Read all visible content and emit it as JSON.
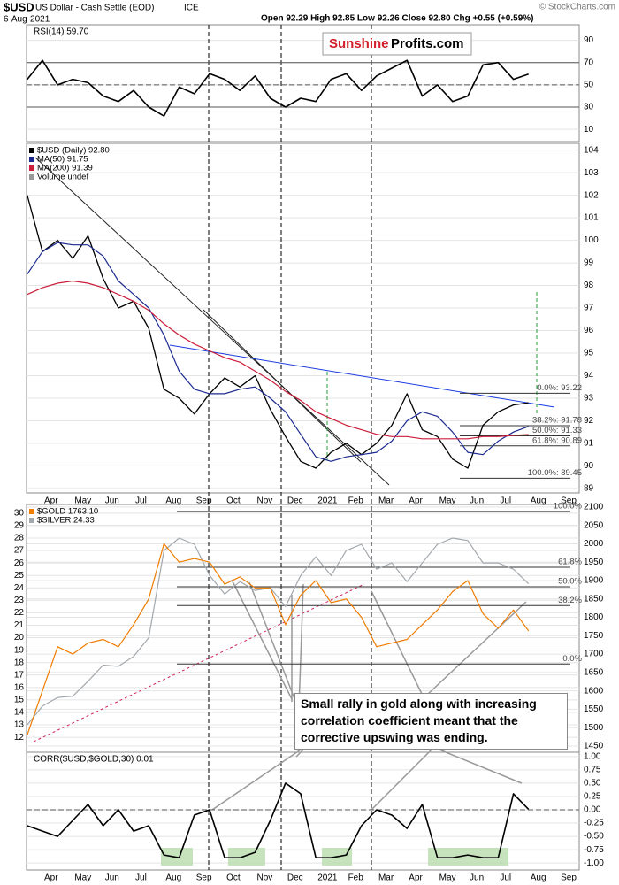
{
  "header": {
    "symbol": "$USD",
    "name": "US Dollar - Cash Settle (EOD)",
    "exchange": "ICE",
    "date": "6-Aug-2021",
    "quote": "Open 92.29  High 92.85  Low 92.26  Close 92.80  Chg +0.55 (+0.59%)",
    "credit": "© StockCharts.com"
  },
  "logo": {
    "left": "Sunshine",
    "right": "Profits.com"
  },
  "annotation": "Small rally in gold along with increasing correlation coefficient meant that the corrective upswing was ending.",
  "chart_data": [
    {
      "type": "line",
      "title": "RSI(14) 59.70",
      "color": "#000000",
      "values": [
        55,
        72,
        50,
        55,
        52,
        40,
        35,
        45,
        30,
        22,
        48,
        42,
        60,
        55,
        45,
        58,
        38,
        30,
        38,
        35,
        55,
        60,
        45,
        58,
        65,
        72,
        40,
        50,
        35,
        40,
        68,
        70,
        55,
        59.7,
        null,
        null,
        null
      ],
      "ylim": [
        -1,
        104
      ],
      "yticks": [
        10,
        30,
        50,
        70,
        90
      ],
      "hlines": [
        70,
        50,
        30
      ]
    },
    {
      "type": "line",
      "categories": [
        null,
        "Apr",
        null,
        "May",
        null,
        "Jun",
        null,
        "Jul",
        null,
        "Aug",
        null,
        "Sep",
        null,
        "Oct",
        null,
        "Nov",
        null,
        "Dec",
        null,
        "2021",
        null,
        "Feb",
        null,
        "Mar",
        null,
        "Apr",
        null,
        "May",
        null,
        "Jun",
        null,
        "Jul",
        null,
        "Aug",
        null,
        "Sep",
        null
      ],
      "series": [
        {
          "name": "$USD (Daily) 92.80",
          "color": "#000000",
          "values": [
            102.0,
            99.5,
            100.0,
            99.2,
            100.2,
            98.3,
            97.0,
            97.3,
            96.1,
            93.4,
            93.0,
            92.3,
            93.2,
            93.9,
            93.5,
            94.0,
            92.5,
            91.3,
            90.2,
            89.9,
            90.6,
            91.0,
            90.5,
            91.0,
            91.8,
            93.2,
            91.6,
            91.3,
            90.3,
            89.9,
            91.8,
            92.4,
            92.7,
            92.8,
            null,
            null,
            null
          ]
        },
        {
          "name": "MA(50) 91.75",
          "color": "#1b2a8f",
          "values": [
            98.5,
            99.5,
            99.9,
            99.8,
            99.8,
            99.3,
            98.2,
            97.6,
            97.0,
            95.8,
            94.2,
            93.4,
            93.2,
            93.2,
            93.4,
            93.5,
            93.0,
            92.4,
            91.4,
            90.4,
            90.2,
            90.4,
            90.5,
            90.6,
            91.1,
            92.0,
            92.4,
            92.2,
            91.5,
            90.6,
            90.5,
            91.1,
            91.5,
            91.75,
            null,
            null,
            null
          ]
        },
        {
          "name": "MA(200) 91.39",
          "color": "#cc1d3a",
          "values": [
            97.6,
            97.9,
            98.1,
            98.2,
            98.1,
            97.9,
            97.6,
            97.3,
            96.9,
            96.3,
            95.8,
            95.4,
            95.1,
            94.8,
            94.6,
            94.2,
            93.8,
            93.3,
            92.9,
            92.4,
            92.1,
            91.8,
            91.6,
            91.4,
            91.3,
            91.3,
            91.2,
            91.2,
            91.2,
            91.2,
            91.3,
            91.3,
            91.35,
            91.39,
            null,
            null,
            null
          ]
        }
      ],
      "legend_extra": "Volume undef",
      "ylim": [
        88.8,
        104.3
      ],
      "yticks": [
        89,
        90,
        91,
        92,
        93,
        94,
        95,
        96,
        97,
        98,
        99,
        100,
        101,
        102,
        103,
        104
      ],
      "levels": [
        {
          "value": 93.22,
          "label": "0.0%: 93.22"
        },
        {
          "value": 91.78,
          "label": "38.2%: 91.78"
        },
        {
          "value": 91.33,
          "label": "50.0%: 91.33"
        },
        {
          "value": 90.89,
          "label": "61.8%: 90.89"
        },
        {
          "value": 89.45,
          "label": "100.0%: 89.45"
        }
      ]
    },
    {
      "type": "line",
      "series": [
        {
          "name": "$SILVER 24.33",
          "color": "#a3a8ad",
          "values": [
            13,
            14.5,
            15.2,
            15.3,
            16.5,
            17.8,
            17.7,
            18.5,
            20,
            27,
            28,
            27.5,
            25,
            23.5,
            24.5,
            23.8,
            24,
            22.5,
            25,
            26.5,
            25,
            27,
            27.5,
            25.5,
            26,
            24.5,
            26,
            27.5,
            28,
            27.8,
            26,
            26,
            25.5,
            24.33,
            null,
            null,
            null
          ]
        },
        {
          "name": "$GOLD 1763.10",
          "color": "#f07c00",
          "axis": "y2",
          "values": [
            1480,
            1600,
            1720,
            1700,
            1730,
            1740,
            1720,
            1780,
            1850,
            2000,
            1950,
            1960,
            1950,
            1890,
            1910,
            1880,
            1880,
            1780,
            1860,
            1900,
            1840,
            1850,
            1800,
            1720,
            1730,
            1740,
            1780,
            1820,
            1870,
            1900,
            1810,
            1770,
            1820,
            1763.1,
            null,
            null,
            null
          ]
        }
      ],
      "ylim": [
        10.8,
        30.7
      ],
      "yticks": [
        12,
        13,
        14,
        15,
        16,
        17,
        18,
        19,
        20,
        21,
        22,
        23,
        24,
        25,
        26,
        27,
        28,
        29,
        30
      ],
      "y2lim": [
        1433,
        2107
      ],
      "y2ticks": [
        1450,
        1500,
        1550,
        1600,
        1650,
        1700,
        1750,
        1800,
        1850,
        1900,
        1950,
        2000,
        2050,
        2100
      ],
      "levels": [
        {
          "value": 2088,
          "label": "100.0%"
        },
        {
          "value": 1936,
          "label": "61.8%"
        },
        {
          "value": 1883,
          "label": "50.0%"
        },
        {
          "value": 1832,
          "label": "38.2%"
        },
        {
          "value": 1673,
          "label": "0.0%"
        }
      ]
    },
    {
      "type": "line",
      "title": "CORR($USD,$GOLD,30) 0.01",
      "color": "#000000",
      "categories": [
        null,
        "Apr",
        null,
        "May",
        null,
        "Jun",
        null,
        "Jul",
        null,
        "Aug",
        null,
        "Sep",
        null,
        "Oct",
        null,
        "Nov",
        null,
        "Dec",
        null,
        "2021",
        null,
        "Feb",
        null,
        "Mar",
        null,
        "Apr",
        null,
        "May",
        null,
        "Jun",
        null,
        "Jul",
        null,
        "Aug",
        null,
        "Sep",
        null
      ],
      "values": [
        -0.3,
        -0.4,
        -0.5,
        -0.2,
        0.1,
        -0.3,
        0,
        -0.4,
        -0.3,
        -0.85,
        -0.9,
        -0.1,
        0,
        -0.9,
        -0.9,
        -0.8,
        -0.2,
        0.5,
        0.3,
        -0.9,
        -0.9,
        -0.85,
        -0.3,
        0,
        -0.1,
        -0.35,
        0.1,
        -0.9,
        -0.9,
        -0.85,
        -0.9,
        -0.9,
        0.3,
        0.01,
        null,
        null,
        null
      ],
      "ylim": [
        -1.13,
        1.08
      ],
      "yticks": [
        {
          "value": 1,
          "label": "1.00"
        },
        {
          "value": 0.75,
          "label": "0.75"
        },
        {
          "value": 0.5,
          "label": "0.50"
        },
        {
          "value": 0.25,
          "label": "0.25"
        },
        {
          "value": 0,
          "label": "0.00"
        },
        {
          "value": -0.25,
          "label": "-0.25"
        },
        {
          "value": -0.5,
          "label": "-0.50"
        },
        {
          "value": -0.75,
          "label": "-0.75"
        },
        {
          "value": -1,
          "label": "-1.00"
        }
      ],
      "hlines": [
        0
      ]
    }
  ]
}
